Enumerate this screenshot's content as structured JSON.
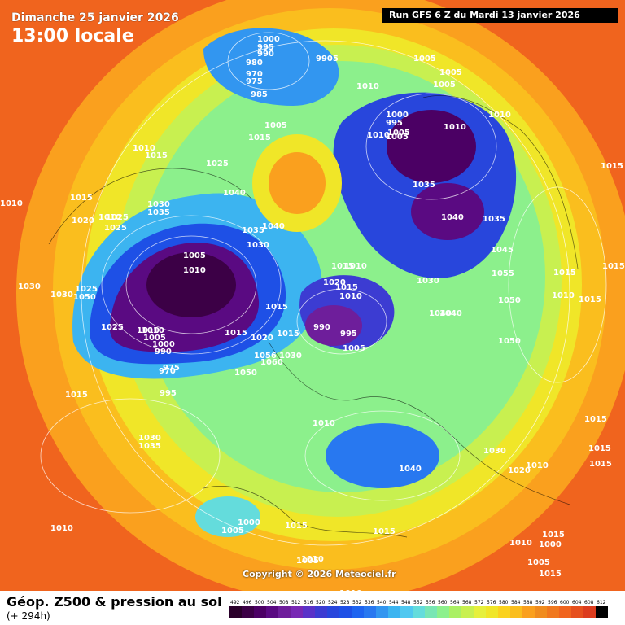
{
  "header": {
    "date_label": "Dimanche 25 janvier 2026",
    "local_time": "13:00 locale",
    "run_info": "Run GFS 6 Z du Mardi 13 janvier 2026"
  },
  "copyright": "Copyright © 2026 Meteociel.fr",
  "footer": {
    "title": "Géop. Z500 & pression au sol",
    "subtitle": "(+ 294h)"
  },
  "legend": {
    "values": [
      "492",
      "496",
      "500",
      "504",
      "508",
      "512",
      "516",
      "520",
      "524",
      "528",
      "532",
      "536",
      "540",
      "544",
      "548",
      "552",
      "556",
      "560",
      "564",
      "568",
      "572",
      "576",
      "580",
      "584",
      "588",
      "592",
      "596",
      "600",
      "604",
      "608",
      "612"
    ],
    "colors": [
      "#2a002a",
      "#3c0046",
      "#4b0064",
      "#5a0a82",
      "#6e1e9b",
      "#7828b4",
      "#5a32c8",
      "#3c3cd2",
      "#2846dc",
      "#1e50e6",
      "#1e64f0",
      "#2878f0",
      "#3296f0",
      "#3cb4f0",
      "#50c8f0",
      "#64dcdc",
      "#78e6b4",
      "#8cf08c",
      "#aaf064",
      "#c8f050",
      "#e6f03c",
      "#f0e628",
      "#fad21e",
      "#fabe1e",
      "#faa01e",
      "#f08c1e",
      "#f0781e",
      "#f0641e",
      "#e6501e",
      "#dc3c1e",
      "#000000"
    ]
  },
  "pressure_labels": [
    "1000",
    "995",
    "990",
    "980",
    "970",
    "975",
    "985",
    "9905",
    "1005",
    "1010",
    "1005",
    "1005",
    "1005",
    "1010",
    "1000",
    "995",
    "1010",
    "1005",
    "1010",
    "1015",
    "1005",
    "1015",
    "1010",
    "1015",
    "1025",
    "1015",
    "1040",
    "1010",
    "1010",
    "1020",
    "1025",
    "1030",
    "1035",
    "1025",
    "1035",
    "1040",
    "1040",
    "1035",
    "1030",
    "1035",
    "1045",
    "1015",
    "1010",
    "1005",
    "1010",
    "1020",
    "1010",
    "1015",
    "1055",
    "1050",
    "1030",
    "1040",
    "1030",
    "1015",
    "1025",
    "1010",
    "1015",
    "990",
    "995",
    "1005",
    "1050",
    "1030",
    "1025",
    "1020",
    "1015",
    "1010",
    "1005",
    "1000",
    "990",
    "975",
    "970",
    "1015",
    "1050",
    "1060",
    "1056",
    "1030",
    "1040",
    "1050",
    "1015",
    "1010",
    "1015",
    "995",
    "1035",
    "1030",
    "1015",
    "1010",
    "1040",
    "1030",
    "1020",
    "1010",
    "1015",
    "1015",
    "1015",
    "1015",
    "1000",
    "1005",
    "1015",
    "1015",
    "1010",
    "1005",
    "1010",
    "1010",
    "1000",
    "1005",
    "1015",
    "1010"
  ],
  "colors": {
    "low_core": "#3c0046",
    "deep_blue": "#2846dc",
    "mid_blue": "#3cb4f0",
    "green": "#8cf08c",
    "yellow": "#f0e628",
    "orange": "#faa01e",
    "red": "#f0641e"
  }
}
